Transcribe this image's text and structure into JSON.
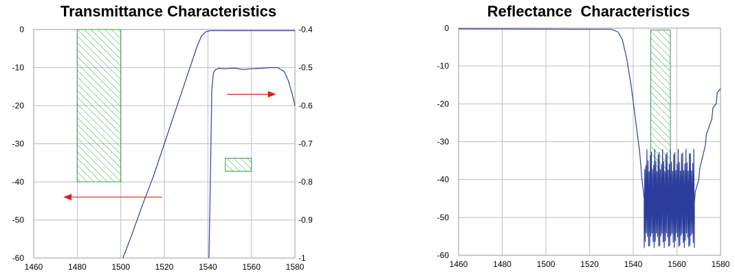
{
  "chart_data": [
    {
      "type": "line",
      "title": "Transmittance Characteristics",
      "xlabel": "",
      "ylabel": "",
      "xlim": [
        1460,
        1580
      ],
      "ylim": [
        -60,
        0
      ],
      "y2lim": [
        -1,
        -0.4
      ],
      "x_ticks": [
        1460,
        1480,
        1500,
        1520,
        1540,
        1560,
        1580
      ],
      "y_ticks": [
        0,
        -10,
        -20,
        -30,
        -40,
        -50,
        -60
      ],
      "y2_ticks": [
        "-0.4",
        "-0.5",
        "-0.6",
        "-0.7",
        "-0.8",
        "-0.9",
        "-1"
      ],
      "grid": true,
      "series": [
        {
          "axis": "left",
          "color": "#2b3d9c",
          "x": [
            1501,
            1505,
            1510,
            1515,
            1520,
            1525,
            1530,
            1535,
            1537,
            1539,
            1541,
            1545,
            1560,
            1580
          ],
          "y": [
            -60,
            -54,
            -46,
            -38.5,
            -30,
            -21.5,
            -13,
            -4.5,
            -1.8,
            -0.6,
            -0.3,
            -0.3,
            -0.3,
            -0.3
          ]
        },
        {
          "axis": "right",
          "color": "#2b3d9c",
          "x": [
            1540.5,
            1541.3,
            1541.8,
            1542.5,
            1543.5,
            1545,
            1548,
            1552,
            1556,
            1560,
            1564,
            1568,
            1572,
            1575,
            1577,
            1579,
            1580
          ],
          "y": [
            -1.0,
            -0.75,
            -0.56,
            -0.515,
            -0.505,
            -0.502,
            -0.503,
            -0.501,
            -0.505,
            -0.503,
            -0.502,
            -0.5,
            -0.5,
            -0.51,
            -0.535,
            -0.575,
            -0.6
          ]
        }
      ],
      "shaded_regions": [
        {
          "axis": "left",
          "x": [
            1480,
            1500
          ],
          "y": [
            -40,
            0
          ],
          "color": "#2e9e3a"
        },
        {
          "axis": "right",
          "x": [
            1548,
            1560
          ],
          "y": [
            -0.772,
            -0.738
          ],
          "color": "#2e9e3a"
        }
      ],
      "arrows": [
        {
          "axis": "left",
          "from_x": 1519,
          "to_x": 1474,
          "y": -44,
          "color": "#e0201c"
        },
        {
          "axis": "right",
          "from_x": 1549,
          "to_x": 1571,
          "y": -0.57,
          "color": "#e0201c"
        }
      ]
    },
    {
      "type": "line",
      "title": "Reflectance  Characteristics",
      "xlabel": "",
      "ylabel": "",
      "xlim": [
        1460,
        1580
      ],
      "ylim": [
        -60,
        0
      ],
      "x_ticks": [
        1460,
        1480,
        1500,
        1520,
        1540,
        1560,
        1580
      ],
      "y_ticks": [
        0,
        -10,
        -20,
        -30,
        -40,
        -50,
        -60
      ],
      "grid": true,
      "series": [
        {
          "color": "#2b3d9c",
          "x": [
            1460,
            1530,
            1533,
            1535,
            1537,
            1539,
            1541,
            1543,
            1544,
            1545
          ],
          "y": [
            -0.2,
            -0.3,
            -1,
            -3,
            -8,
            -15,
            -24,
            -33,
            -40,
            -45
          ],
          "ripple_x": [
            1545,
            1568
          ],
          "ripple_y": [
            -48,
            -56
          ],
          "rise_x": [
            1568,
            1570,
            1573,
            1576,
            1578,
            1580
          ],
          "rise_y": [
            -46,
            -40,
            -31,
            -24,
            -20,
            -16
          ]
        }
      ],
      "shaded_regions": [
        {
          "x": [
            1548,
            1557
          ],
          "y": [
            -40,
            -0.5
          ],
          "color": "#2e9e3a"
        }
      ]
    }
  ]
}
